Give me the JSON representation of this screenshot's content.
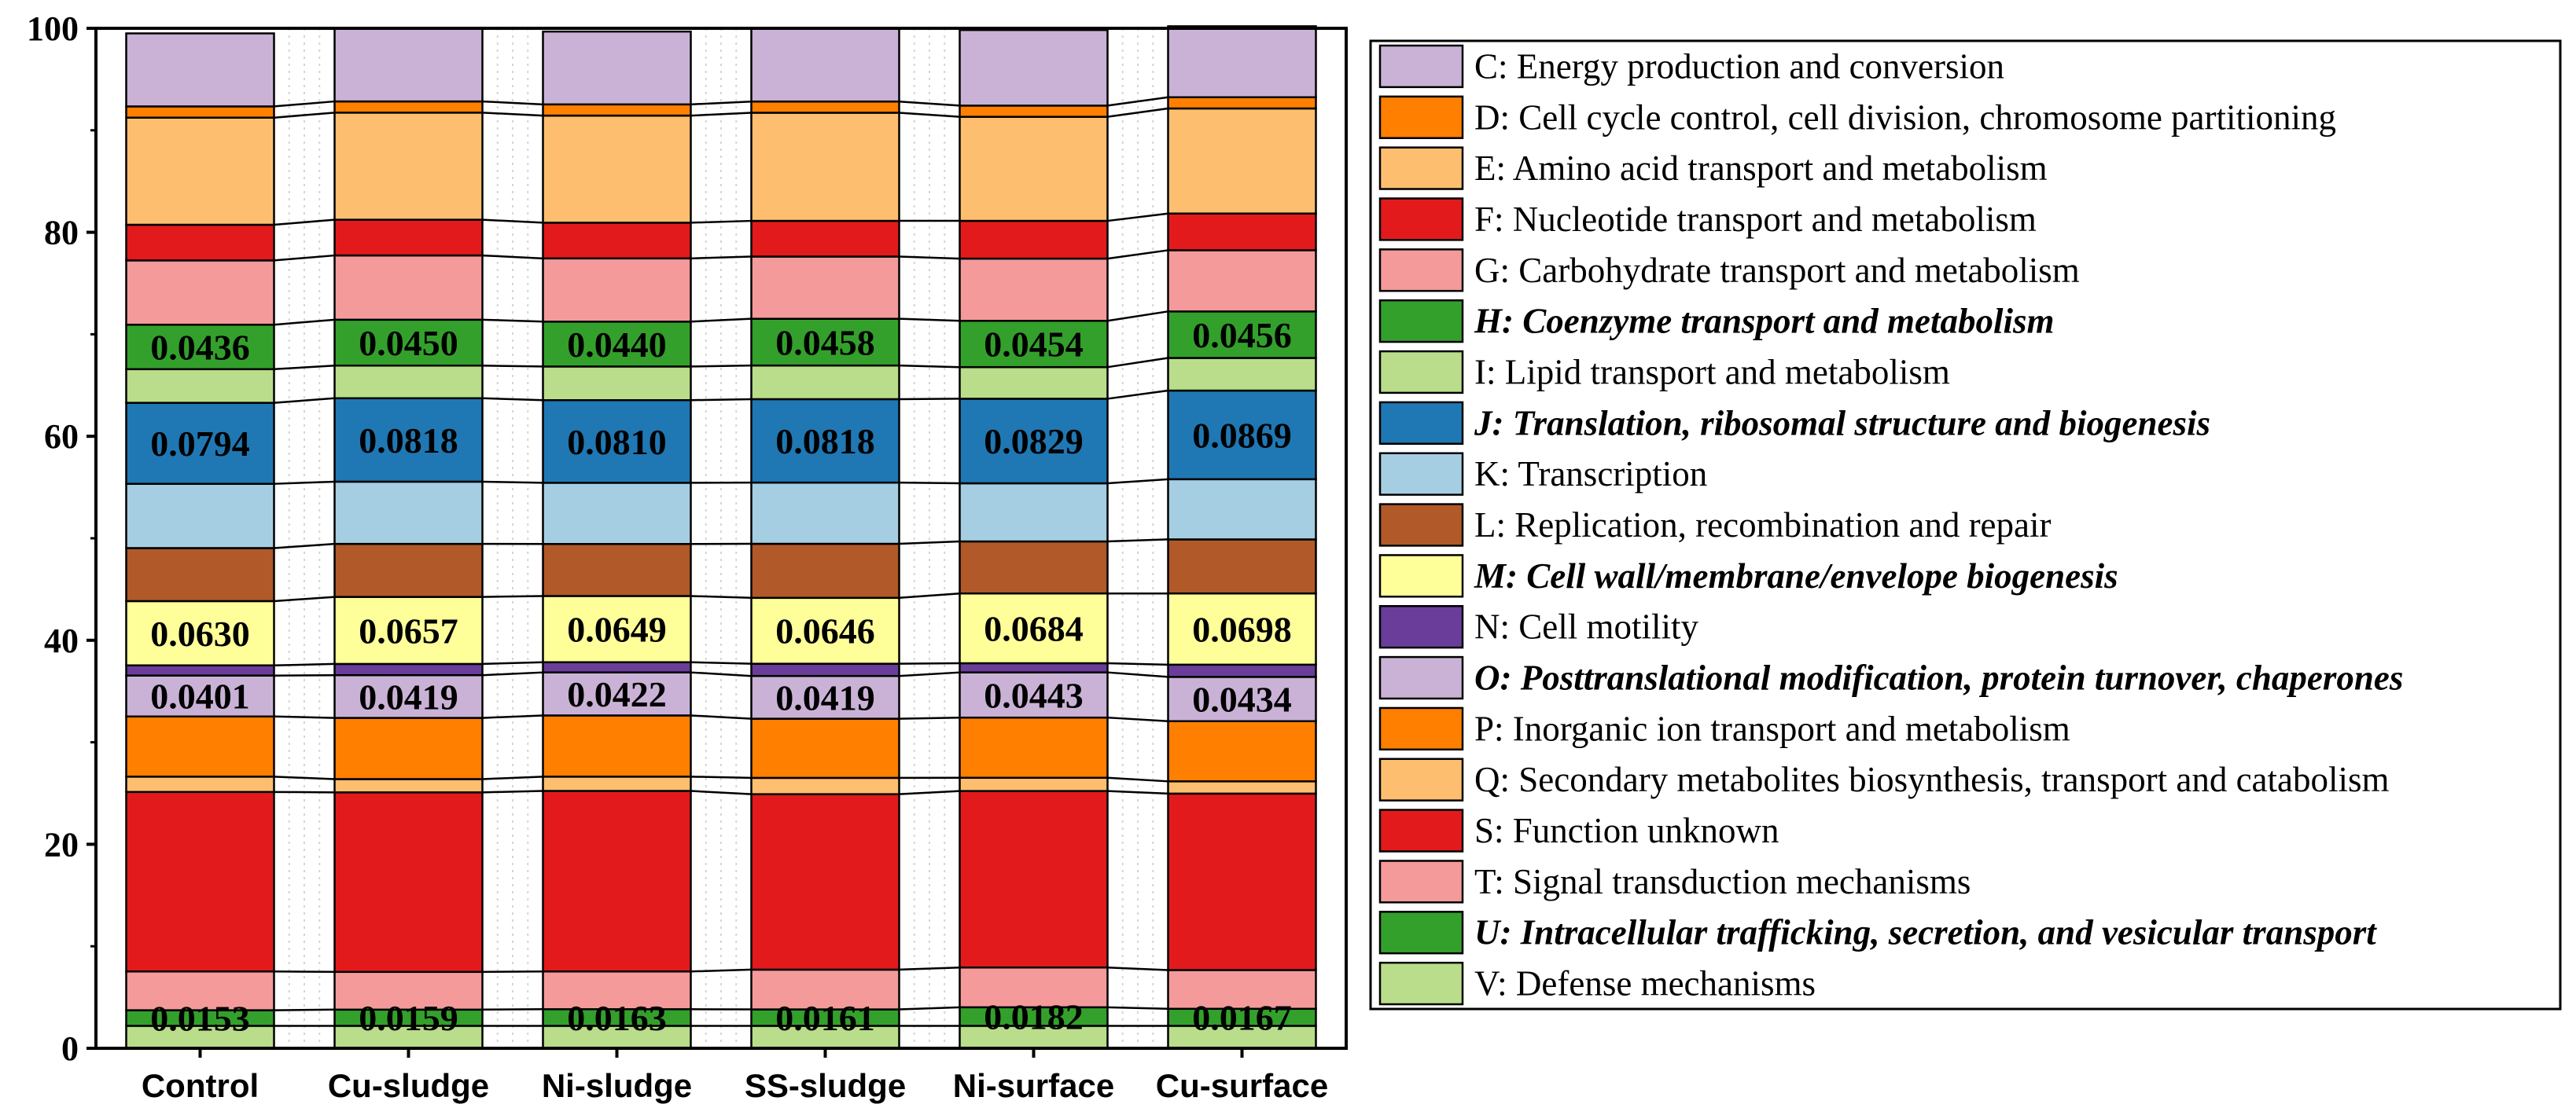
{
  "chart_data": {
    "type": "bar",
    "stacked": true,
    "title": "",
    "xlabel": "",
    "ylabel": "",
    "ylim": [
      0,
      100
    ],
    "yticks": [
      "0",
      "20",
      "40",
      "60",
      "80",
      "100"
    ],
    "categories": [
      "Control",
      "Cu-sludge",
      "Ni-sludge",
      "SS-sludge",
      "Ni-surface",
      "Cu-surface"
    ],
    "series": [
      {
        "name": "V: Defense mechanisms",
        "color": "#b9dd8a",
        "values": [
          2.2,
          2.2,
          2.2,
          2.2,
          2.2,
          2.2
        ]
      },
      {
        "name": "U: Intracellular trafficking, secretion, and vesicular transport",
        "color": "#33a02c",
        "emphasis": true,
        "values": [
          1.53,
          1.59,
          1.63,
          1.61,
          1.82,
          1.67
        ],
        "labels": [
          "0.0153",
          "0.0159",
          "0.0163",
          "0.0161",
          "0.0182",
          "0.0167"
        ]
      },
      {
        "name": "T: Signal transduction mechanisms",
        "color": "#f49a9a",
        "values": [
          3.8,
          3.7,
          3.7,
          3.9,
          3.9,
          3.8
        ]
      },
      {
        "name": "S: Function unknown",
        "color": "#e31a1c",
        "values": [
          17.6,
          17.6,
          17.7,
          17.2,
          17.3,
          17.3
        ]
      },
      {
        "name": "Q: Secondary metabolites biosynthesis, transport and catabolism",
        "color": "#fdbf6f",
        "values": [
          1.5,
          1.3,
          1.4,
          1.6,
          1.3,
          1.2
        ]
      },
      {
        "name": "P: Inorganic ion transport and metabolism",
        "color": "#ff7f00",
        "values": [
          5.9,
          6.0,
          6.0,
          5.8,
          5.9,
          5.9
        ]
      },
      {
        "name": "O: Posttranslational modification, protein turnover, chaperones",
        "color": "#cab2d6",
        "emphasis": true,
        "values": [
          4.01,
          4.19,
          4.22,
          4.19,
          4.43,
          4.34
        ],
        "labels": [
          "0.0401",
          "0.0419",
          "0.0422",
          "0.0419",
          "0.0443",
          "0.0434"
        ]
      },
      {
        "name": "N: Cell motility",
        "color": "#6a3d9a",
        "values": [
          1.0,
          1.1,
          1.0,
          1.2,
          0.9,
          1.2
        ]
      },
      {
        "name": "M: Cell wall/membrane/envelope biogenesis",
        "color": "#ffff99",
        "emphasis": true,
        "values": [
          6.3,
          6.57,
          6.49,
          6.46,
          6.84,
          6.98
        ],
        "labels": [
          "0.0630",
          "0.0657",
          "0.0649",
          "0.0646",
          "0.0684",
          "0.0698"
        ]
      },
      {
        "name": "L: Replication, recombination and repair",
        "color": "#b15928",
        "values": [
          5.2,
          5.2,
          5.1,
          5.3,
          5.1,
          5.3
        ]
      },
      {
        "name": "K: Transcription",
        "color": "#a6cee3",
        "values": [
          6.3,
          6.1,
          6.0,
          6.0,
          5.7,
          5.9
        ]
      },
      {
        "name": "J: Translation, ribosomal structure and biogenesis",
        "color": "#1f78b4",
        "emphasis": true,
        "values": [
          7.94,
          8.18,
          8.1,
          8.18,
          8.29,
          8.69
        ],
        "labels": [
          "0.0794",
          "0.0818",
          "0.0810",
          "0.0818",
          "0.0829",
          "0.0869"
        ]
      },
      {
        "name": "I: Lipid transport and metabolism",
        "color": "#b9dd8a",
        "values": [
          3.3,
          3.2,
          3.3,
          3.3,
          3.1,
          3.2
        ]
      },
      {
        "name": "H: Coenzyme transport and metabolism",
        "color": "#33a02c",
        "emphasis": true,
        "values": [
          4.36,
          4.5,
          4.4,
          4.58,
          4.54,
          4.56
        ],
        "labels": [
          "0.0436",
          "0.0450",
          "0.0440",
          "0.0458",
          "0.0454",
          "0.0456"
        ]
      },
      {
        "name": "G: Carbohydrate transport and metabolism",
        "color": "#f49a9a",
        "values": [
          6.3,
          6.3,
          6.2,
          6.1,
          6.1,
          6.0
        ]
      },
      {
        "name": "F: Nucleotide transport and metabolism",
        "color": "#e31a1c",
        "values": [
          3.5,
          3.5,
          3.5,
          3.5,
          3.7,
          3.6
        ]
      },
      {
        "name": "E: Amino acid transport and metabolism",
        "color": "#fdbf6f",
        "values": [
          10.5,
          10.5,
          10.5,
          10.6,
          10.2,
          10.3
        ]
      },
      {
        "name": "D: Cell cycle control, cell division, chromosome partitioning",
        "color": "#ff7f00",
        "values": [
          1.1,
          1.1,
          1.1,
          1.1,
          1.1,
          1.1
        ]
      },
      {
        "name": "C: Energy production and conversion",
        "color": "#cab2d6",
        "values": [
          7.16,
          7.16,
          7.14,
          7.16,
          7.41,
          6.96
        ]
      }
    ],
    "legend": {
      "position": "right",
      "order": [
        "C",
        "D",
        "E",
        "F",
        "G",
        "H",
        "I",
        "J",
        "K",
        "L",
        "M",
        "N",
        "O",
        "P",
        "Q",
        "S",
        "T",
        "U",
        "V"
      ]
    },
    "connector_lines": true
  }
}
